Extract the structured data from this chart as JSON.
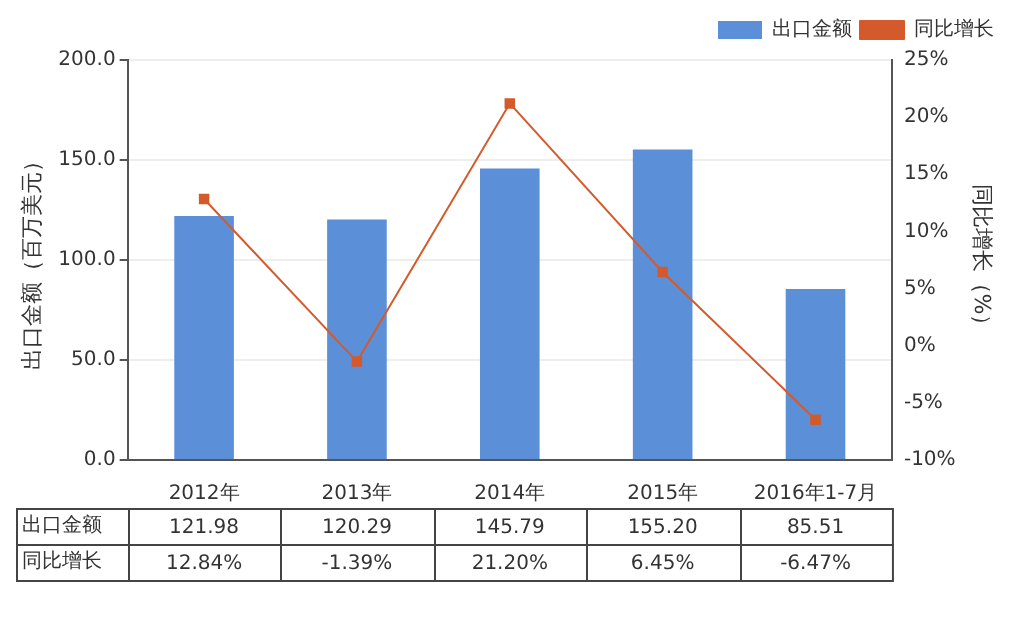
{
  "chart_data": {
    "type": "bar",
    "categories": [
      "2012年",
      "2013年",
      "2014年",
      "2015年",
      "2016年1-7月"
    ],
    "series": [
      {
        "name": "出口金额",
        "color": "#5b8fd8",
        "values": [
          121.98,
          120.29,
          145.79,
          155.2,
          85.51
        ],
        "value_labels": [
          "121.98",
          "120.29",
          "145.79",
          "155.20",
          "85.51"
        ]
      },
      {
        "name": "同比增长",
        "type": "line",
        "axis": "y2",
        "color": "#d45a2c",
        "values": [
          12.84,
          -1.39,
          21.2,
          6.45,
          -6.47
        ],
        "value_labels": [
          "12.84%",
          "-1.39%",
          "21.20%",
          "6.45%",
          "-6.47%"
        ]
      }
    ],
    "ylabel": "出口金额（百万美元）",
    "y2label": "同比增长（%）",
    "ylim": [
      0,
      200
    ],
    "yticks": [
      {
        "value": 0,
        "label": "0.0"
      },
      {
        "value": 50,
        "label": "50.0"
      },
      {
        "value": 100,
        "label": "100.0"
      },
      {
        "value": 150,
        "label": "150.0"
      },
      {
        "value": 200,
        "label": "200.0"
      }
    ],
    "y2lim": [
      -10,
      25
    ],
    "y2ticks": [
      {
        "value": -10,
        "label": "-10%"
      },
      {
        "value": -5,
        "label": "-5%"
      },
      {
        "value": 0,
        "label": "0%"
      },
      {
        "value": 5,
        "label": "5%"
      },
      {
        "value": 10,
        "label": "10%"
      },
      {
        "value": 15,
        "label": "15%"
      },
      {
        "value": 20,
        "label": "20%"
      },
      {
        "value": 25,
        "label": "25%"
      }
    ],
    "grid": "y",
    "legend": "top right",
    "marker": "square",
    "line_style": "solid"
  }
}
